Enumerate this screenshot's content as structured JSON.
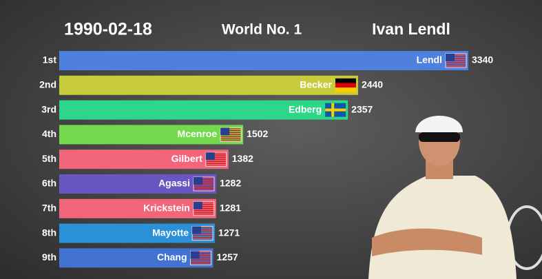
{
  "chart_data": {
    "type": "bar",
    "orientation": "horizontal",
    "date": "1990-02-18",
    "title": "World No. 1",
    "leader": "Ivan Lendl",
    "ranks": [
      "1st",
      "2nd",
      "3rd",
      "4th",
      "5th",
      "6th",
      "7th",
      "8th",
      "9th"
    ],
    "categories": [
      "Lendl",
      "Becker",
      "Edberg",
      "Mcenroe",
      "Gilbert",
      "Agassi",
      "Krickstein",
      "Mayotte",
      "Chang"
    ],
    "values": [
      3340,
      2440,
      2357,
      1502,
      1382,
      1282,
      1281,
      1271,
      1257
    ],
    "colors": [
      "#4f80dd",
      "#c8cb3c",
      "#2ed68a",
      "#74d94c",
      "#f2667b",
      "#6a56c2",
      "#f2667b",
      "#2a90d8",
      "#4272d2"
    ]
  }
}
